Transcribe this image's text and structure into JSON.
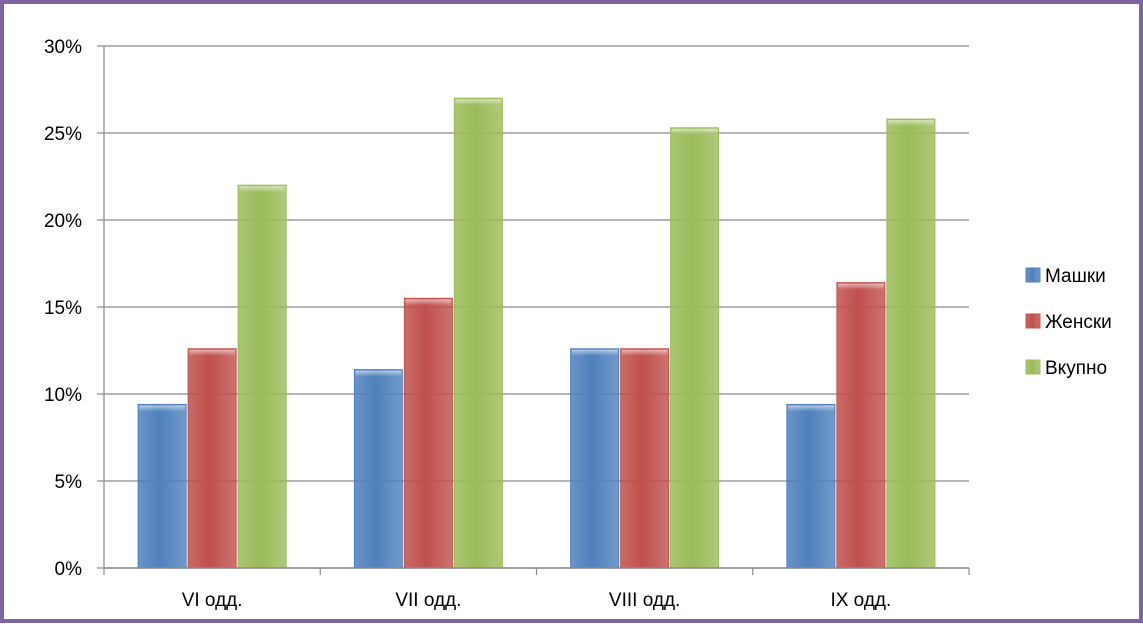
{
  "chart_data": {
    "type": "bar",
    "categories": [
      "VI одд.",
      "VII одд.",
      "VIII одд.",
      "IX одд."
    ],
    "series": [
      {
        "name": "Машки",
        "values": [
          9.4,
          11.4,
          12.6,
          9.4
        ],
        "color": "#4f81bd"
      },
      {
        "name": "Женски",
        "values": [
          12.6,
          15.5,
          12.6,
          16.4
        ],
        "color": "#c0504d"
      },
      {
        "name": "Вкупно",
        "values": [
          22.0,
          27.0,
          25.3,
          25.8
        ],
        "color": "#9bbb59"
      }
    ],
    "ylim": [
      0,
      30
    ],
    "yticks": [
      0,
      5,
      10,
      15,
      20,
      25,
      30
    ],
    "ytick_labels": [
      "0%",
      "5%",
      "10%",
      "15%",
      "20%",
      "25%",
      "30%"
    ],
    "grid": true,
    "legend_position": "right",
    "frame_color": "#8064a2"
  }
}
